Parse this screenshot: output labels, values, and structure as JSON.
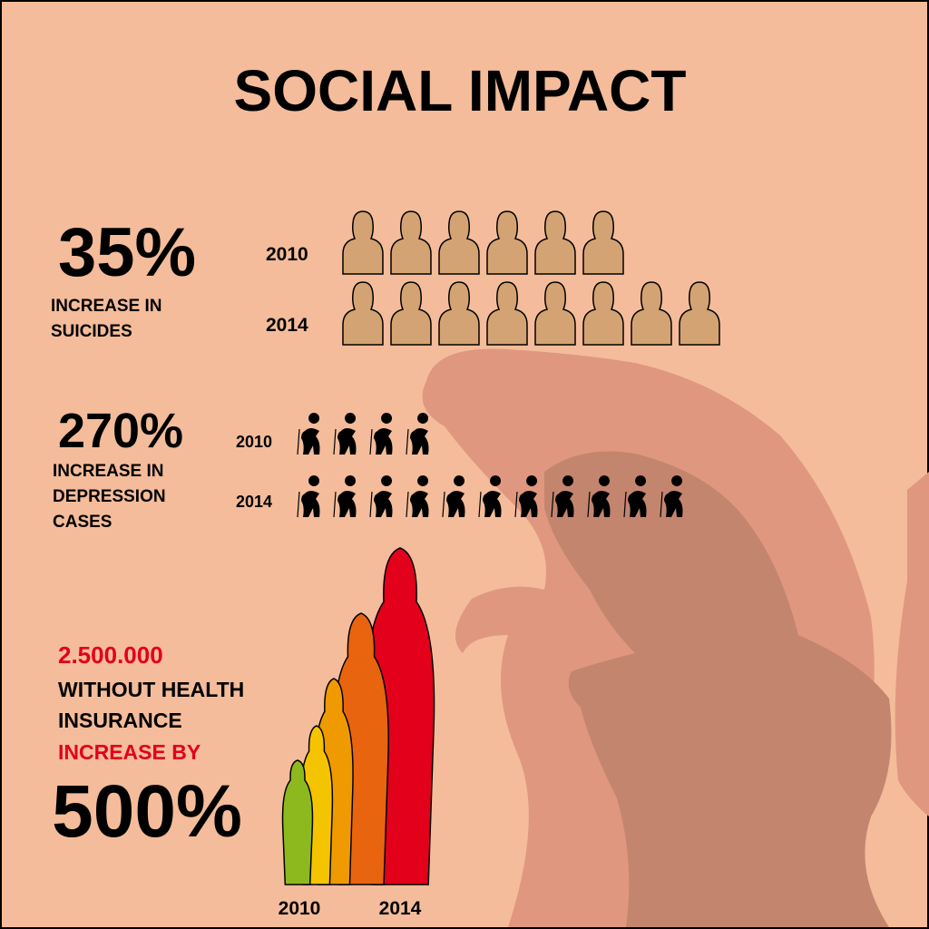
{
  "title": "SOCIAL IMPACT",
  "sections": [
    {
      "stat": "35%",
      "label": [
        "INCREASE IN",
        "SUICIDES"
      ],
      "rows": [
        {
          "year": "2010",
          "icons": 6
        },
        {
          "year": "2014",
          "icons": 8
        }
      ]
    },
    {
      "stat": "270%",
      "label": [
        "INCREASE IN",
        "DEPRESSION",
        "CASES"
      ],
      "rows": [
        {
          "year": "2010",
          "icons": 4
        },
        {
          "year": "2014",
          "icons": 11
        }
      ]
    }
  ],
  "insurance": {
    "count": "2.500.000",
    "label": [
      "WITHOUT HEALTH",
      "INSURANCE"
    ],
    "increase_label": "INCREASE BY",
    "increase": "500%",
    "years": [
      "2010",
      "2014"
    ]
  }
}
